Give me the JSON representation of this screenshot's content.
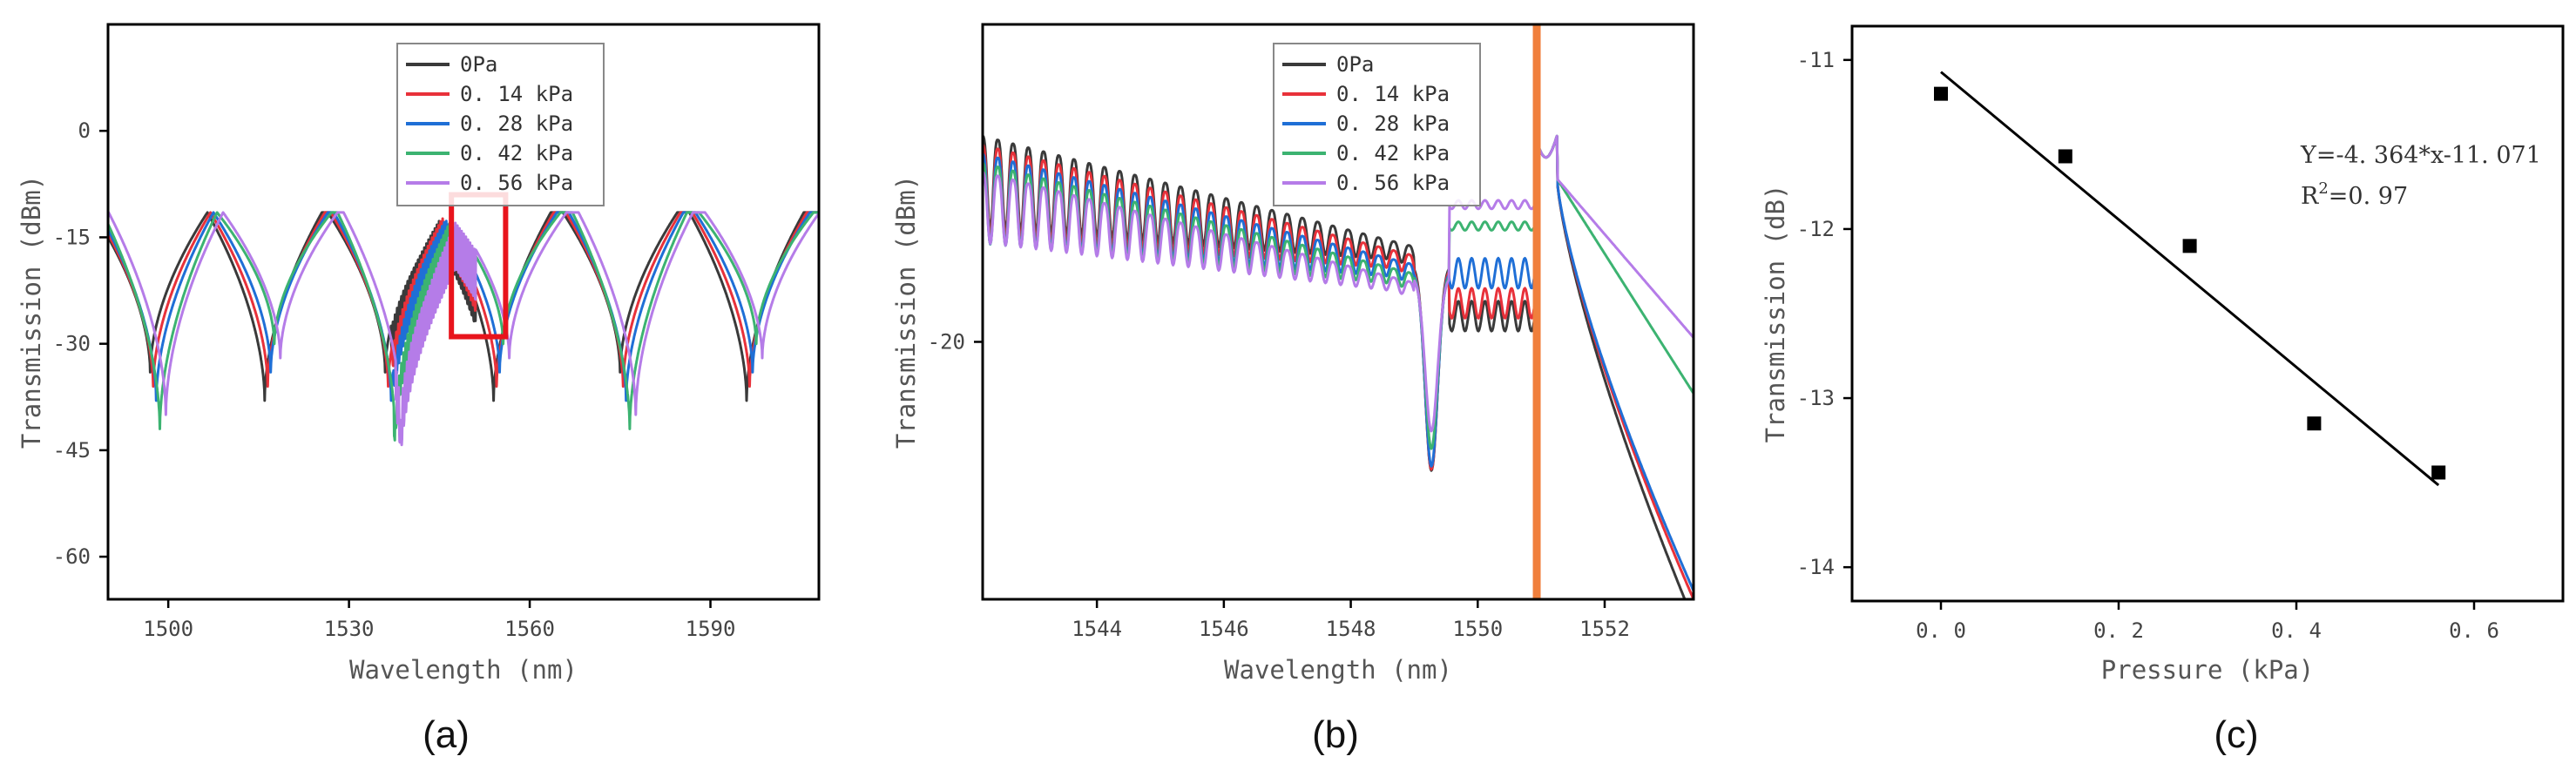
{
  "chart_data": [
    {
      "type": "line",
      "panel_label": "(a)",
      "xlabel": "Wavelength (nm)",
      "ylabel": "Transmission (dBm)",
      "xlim": [
        1490,
        1608
      ],
      "ylim": [
        -66,
        15
      ],
      "xticks": [
        1500,
        1530,
        1560,
        1590
      ],
      "yticks": [
        0,
        -15,
        -30,
        -45,
        -60
      ],
      "legend_position": "top-center",
      "dip_centers": [
        1497,
        1516,
        1536,
        1554,
        1575,
        1596
      ],
      "dip_depth": -36,
      "peak_level": -11.5,
      "fringe_region": [
        1537,
        1551
      ],
      "highlight_box": {
        "x": [
          1547,
          1556
        ],
        "y": [
          -29,
          -9
        ]
      },
      "series": [
        {
          "name": "0Pa",
          "color": "#3a3a3a",
          "shift_nm": 0,
          "depth_offset": -1
        },
        {
          "name": "0. 14  kPa",
          "color": "#e8313a",
          "shift_nm": 0.5,
          "depth_offset": 0
        },
        {
          "name": "0. 28  kPa",
          "color": "#1f6fd6",
          "shift_nm": 1.0,
          "depth_offset": 1
        },
        {
          "name": "0. 42  kPa",
          "color": "#3cb371",
          "shift_nm": 1.6,
          "depth_offset": 3
        },
        {
          "name": "0. 56  kPa",
          "color": "#b57ce8",
          "shift_nm": 2.6,
          "depth_offset": 2
        }
      ]
    },
    {
      "type": "line",
      "panel_label": "(b)",
      "xlabel": "Wavelength (nm)",
      "ylabel": "Transmission (dBm)",
      "xlim": [
        1542.2,
        1553.4
      ],
      "ylim": [
        -26,
        -12.6
      ],
      "xticks": [
        1544,
        1546,
        1548,
        1550,
        1552
      ],
      "yticks": [
        -20
      ],
      "legend_position": "top-right",
      "marker_line": {
        "x": 1550.93,
        "color": "#f07f3c"
      },
      "series": [
        {
          "name": "0Pa",
          "color": "#3a3a3a",
          "plateau": -19.4,
          "tail_end": -26.5,
          "amp": 1.0
        },
        {
          "name": "0. 14  kPa",
          "color": "#e8313a",
          "plateau": -19.1,
          "tail_end": -26.0,
          "amp": 0.98
        },
        {
          "name": "0. 28  kPa",
          "color": "#1f6fd6",
          "plateau": -18.4,
          "tail_end": -25.8,
          "amp": 0.95
        },
        {
          "name": "0. 42  kPa",
          "color": "#3cb371",
          "plateau": -17.3,
          "tail_end": -21.2,
          "amp": 0.85
        },
        {
          "name": "0. 56  kPa",
          "color": "#b57ce8",
          "plateau": -16.8,
          "tail_end": -19.9,
          "amp": 0.75
        }
      ]
    },
    {
      "type": "scatter",
      "panel_label": "(c)",
      "xlabel": "Pressure (kPa)",
      "ylabel": "Transmission (dB)",
      "xlim": [
        -0.1,
        0.7
      ],
      "ylim": [
        -14.2,
        -10.8
      ],
      "xticks": [
        0.0,
        0.2,
        0.4,
        0.6
      ],
      "xtick_labels": [
        "0. 0",
        "0. 2",
        "0. 4",
        "0. 6"
      ],
      "yticks": [
        -11,
        -12,
        -13,
        -14
      ],
      "points": [
        {
          "x": 0.0,
          "y": -11.2
        },
        {
          "x": 0.14,
          "y": -11.57
        },
        {
          "x": 0.28,
          "y": -12.1
        },
        {
          "x": 0.42,
          "y": -13.15
        },
        {
          "x": 0.56,
          "y": -13.44
        }
      ],
      "fit": {
        "slope": -4.364,
        "intercept": -11.071,
        "x_range": [
          0.0,
          0.56
        ]
      },
      "fit_equation": "Y=-4. 364*x-11. 071",
      "r_squared": "R",
      "r_squared_exp": "2",
      "r_squared_value": "=0. 97"
    }
  ]
}
